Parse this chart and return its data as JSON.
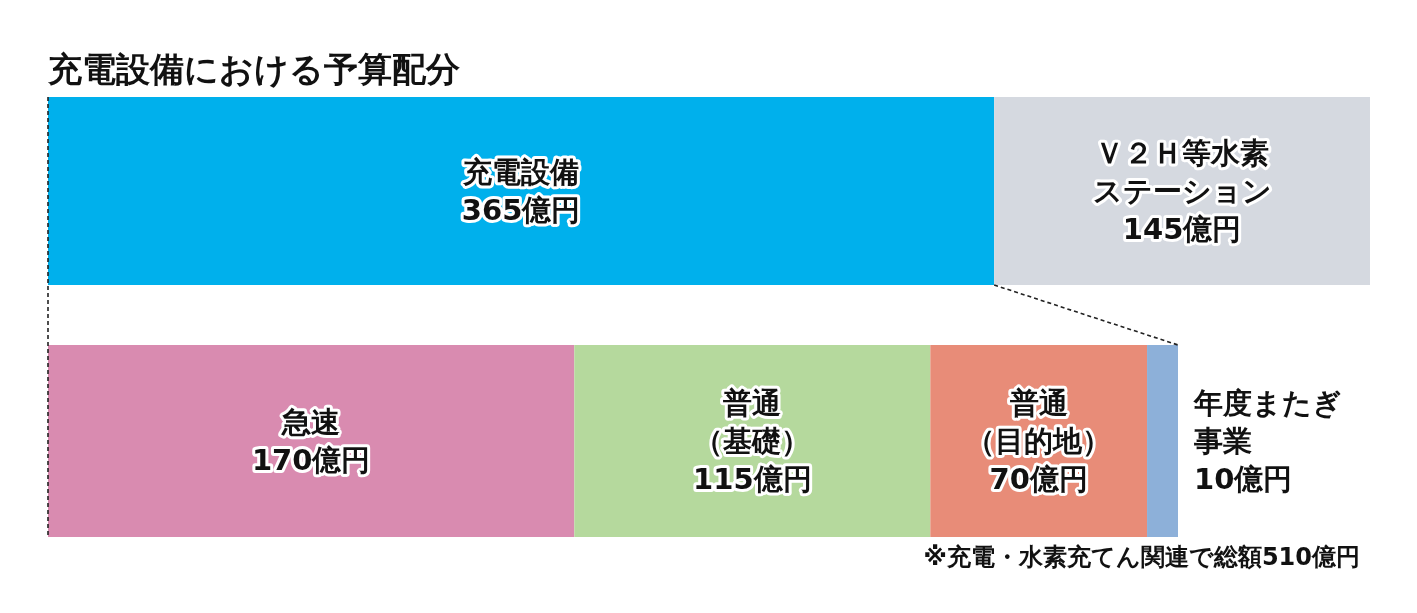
{
  "chart_data": [
    {
      "type": "bar",
      "title": "充電設備における予算配分",
      "orientation": "horizontal",
      "stacked": true,
      "categories": [
        null
      ],
      "series": [
        {
          "name": "充電設備",
          "color": "#00b0ec",
          "values": [
            365
          ],
          "value_labels": [
            "365億円"
          ]
        },
        {
          "name": "Ｖ２Ｈ等水素ステーション",
          "color": "#d5d9e0",
          "values": [
            145
          ],
          "value_labels": [
            "145億円"
          ]
        }
      ],
      "xlim": [
        0,
        510
      ],
      "tick_labels": false
    },
    {
      "type": "bar",
      "orientation": "horizontal",
      "stacked": true,
      "categories": [
        null
      ],
      "series": [
        {
          "name": "急速",
          "color": "#d98bb0",
          "values": [
            170
          ],
          "value_labels": [
            "170億円"
          ]
        },
        {
          "name": "普通（基礎）",
          "color": "#b5d99d",
          "values": [
            115
          ],
          "value_labels": [
            "115億円"
          ]
        },
        {
          "name": "普通（目的地）",
          "color": "#e88c78",
          "values": [
            70
          ],
          "value_labels": [
            "70億円"
          ]
        },
        {
          "name": "年度またぎ事業",
          "color": "#8db0d9",
          "values": [
            10
          ],
          "value_labels": [
            "10億円"
          ]
        }
      ],
      "xlim": [
        0,
        365
      ],
      "tick_labels": false,
      "annotations": [
        "※充電・水素充てん関連で総額510億円"
      ]
    }
  ]
}
